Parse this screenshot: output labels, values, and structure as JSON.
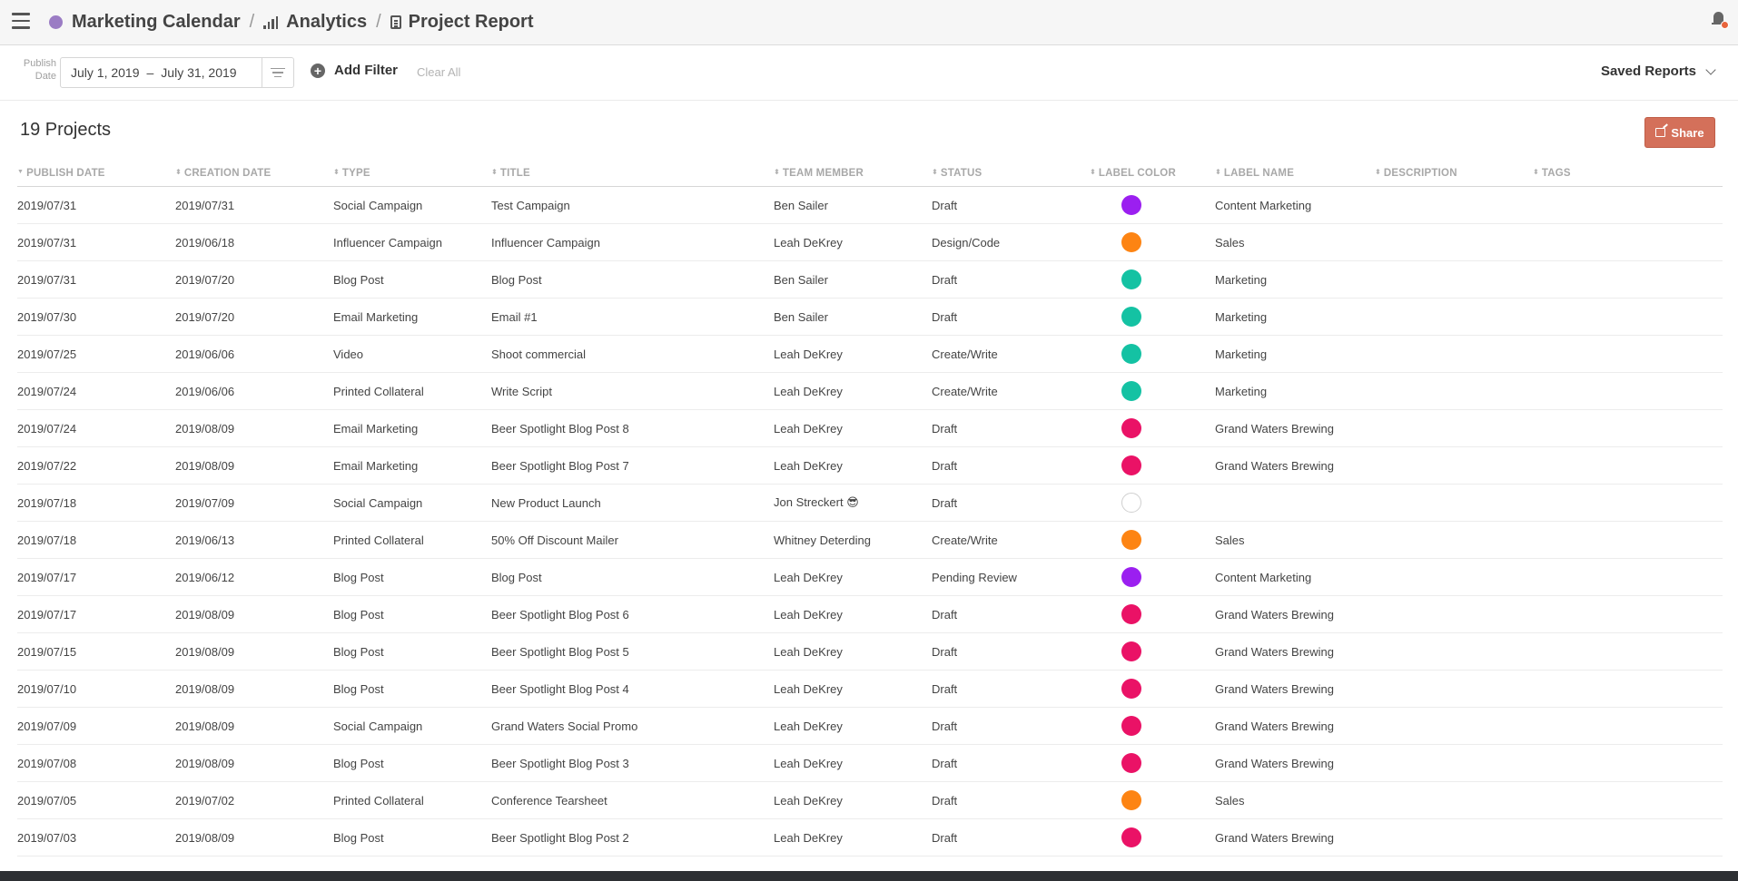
{
  "breadcrumb": {
    "calendar": "Marketing Calendar",
    "analytics": "Analytics",
    "report": "Project Report",
    "calendar_color": "#9b7cc4"
  },
  "filters": {
    "publish_label_line1": "Publish",
    "publish_label_line2": "Date",
    "date_start": "July 1, 2019",
    "date_separator": "–",
    "date_end": "July 31, 2019",
    "add_filter": "Add Filter",
    "clear_all": "Clear All",
    "saved_reports": "Saved Reports"
  },
  "summary": {
    "count_label": "19 Projects",
    "share": "Share",
    "share_color": "#d4705a"
  },
  "icons": {
    "menu": "menu-icon",
    "analytics": "bar-chart-icon",
    "report": "document-icon",
    "notifications": "bell-icon",
    "sort": "sort-lines-icon",
    "add": "plus-circle-icon",
    "dropdown": "chevron-down-icon",
    "share": "share-icon"
  },
  "table": {
    "columns": [
      "PUBLISH DATE",
      "CREATION DATE",
      "TYPE",
      "TITLE",
      "TEAM MEMBER",
      "STATUS",
      "LABEL COLOR",
      "LABEL NAME",
      "DESCRIPTION",
      "TAGS"
    ],
    "label_colors": {
      "purple": "#9b1ff0",
      "orange": "#fd8413",
      "teal": "#14c2a3",
      "pink": "#ea1266",
      "none": ""
    },
    "rows": [
      {
        "publish": "2019/07/31",
        "created": "2019/07/31",
        "type": "Social Campaign",
        "title": "Test Campaign",
        "member": "Ben Sailer",
        "status": "Draft",
        "color": "#9b1ff0",
        "label": "Content Marketing"
      },
      {
        "publish": "2019/07/31",
        "created": "2019/06/18",
        "type": "Influencer Campaign",
        "title": "Influencer Campaign",
        "member": "Leah DeKrey",
        "status": "Design/Code",
        "color": "#fd8413",
        "label": "Sales"
      },
      {
        "publish": "2019/07/31",
        "created": "2019/07/20",
        "type": "Blog Post",
        "title": "Blog Post",
        "member": "Ben Sailer",
        "status": "Draft",
        "color": "#14c2a3",
        "label": "Marketing"
      },
      {
        "publish": "2019/07/30",
        "created": "2019/07/20",
        "type": "Email Marketing",
        "title": "Email #1",
        "member": "Ben Sailer",
        "status": "Draft",
        "color": "#14c2a3",
        "label": "Marketing"
      },
      {
        "publish": "2019/07/25",
        "created": "2019/06/06",
        "type": "Video",
        "title": "Shoot commercial",
        "member": "Leah DeKrey",
        "status": "Create/Write",
        "color": "#14c2a3",
        "label": "Marketing"
      },
      {
        "publish": "2019/07/24",
        "created": "2019/06/06",
        "type": "Printed Collateral",
        "title": "Write Script",
        "member": "Leah DeKrey",
        "status": "Create/Write",
        "color": "#14c2a3",
        "label": "Marketing"
      },
      {
        "publish": "2019/07/24",
        "created": "2019/08/09",
        "type": "Email Marketing",
        "title": "Beer Spotlight Blog Post 8",
        "member": "Leah DeKrey",
        "status": "Draft",
        "color": "#ea1266",
        "label": "Grand Waters Brewing"
      },
      {
        "publish": "2019/07/22",
        "created": "2019/08/09",
        "type": "Email Marketing",
        "title": "Beer Spotlight Blog Post 7",
        "member": "Leah DeKrey",
        "status": "Draft",
        "color": "#ea1266",
        "label": "Grand Waters Brewing"
      },
      {
        "publish": "2019/07/18",
        "created": "2019/07/09",
        "type": "Social Campaign",
        "title": "New Product Launch",
        "member": "Jon Streckert 😎",
        "status": "Draft",
        "color": "",
        "label": ""
      },
      {
        "publish": "2019/07/18",
        "created": "2019/06/13",
        "type": "Printed Collateral",
        "title": "50% Off Discount Mailer",
        "member": "Whitney Deterding",
        "status": "Create/Write",
        "color": "#fd8413",
        "label": "Sales"
      },
      {
        "publish": "2019/07/17",
        "created": "2019/06/12",
        "type": "Blog Post",
        "title": "Blog Post",
        "member": "Leah DeKrey",
        "status": "Pending Review",
        "color": "#9b1ff0",
        "label": "Content Marketing"
      },
      {
        "publish": "2019/07/17",
        "created": "2019/08/09",
        "type": "Blog Post",
        "title": "Beer Spotlight Blog Post 6",
        "member": "Leah DeKrey",
        "status": "Draft",
        "color": "#ea1266",
        "label": "Grand Waters Brewing"
      },
      {
        "publish": "2019/07/15",
        "created": "2019/08/09",
        "type": "Blog Post",
        "title": "Beer Spotlight Blog Post 5",
        "member": "Leah DeKrey",
        "status": "Draft",
        "color": "#ea1266",
        "label": "Grand Waters Brewing"
      },
      {
        "publish": "2019/07/10",
        "created": "2019/08/09",
        "type": "Blog Post",
        "title": "Beer Spotlight Blog Post 4",
        "member": "Leah DeKrey",
        "status": "Draft",
        "color": "#ea1266",
        "label": "Grand Waters Brewing"
      },
      {
        "publish": "2019/07/09",
        "created": "2019/08/09",
        "type": "Social Campaign",
        "title": "Grand Waters Social Promo",
        "member": "Leah DeKrey",
        "status": "Draft",
        "color": "#ea1266",
        "label": "Grand Waters Brewing"
      },
      {
        "publish": "2019/07/08",
        "created": "2019/08/09",
        "type": "Blog Post",
        "title": "Beer Spotlight Blog Post 3",
        "member": "Leah DeKrey",
        "status": "Draft",
        "color": "#ea1266",
        "label": "Grand Waters Brewing"
      },
      {
        "publish": "2019/07/05",
        "created": "2019/07/02",
        "type": "Printed Collateral",
        "title": "Conference Tearsheet",
        "member": "Leah DeKrey",
        "status": "Draft",
        "color": "#fd8413",
        "label": "Sales"
      },
      {
        "publish": "2019/07/03",
        "created": "2019/08/09",
        "type": "Blog Post",
        "title": "Beer Spotlight Blog Post 2",
        "member": "Leah DeKrey",
        "status": "Draft",
        "color": "#ea1266",
        "label": "Grand Waters Brewing"
      }
    ]
  }
}
